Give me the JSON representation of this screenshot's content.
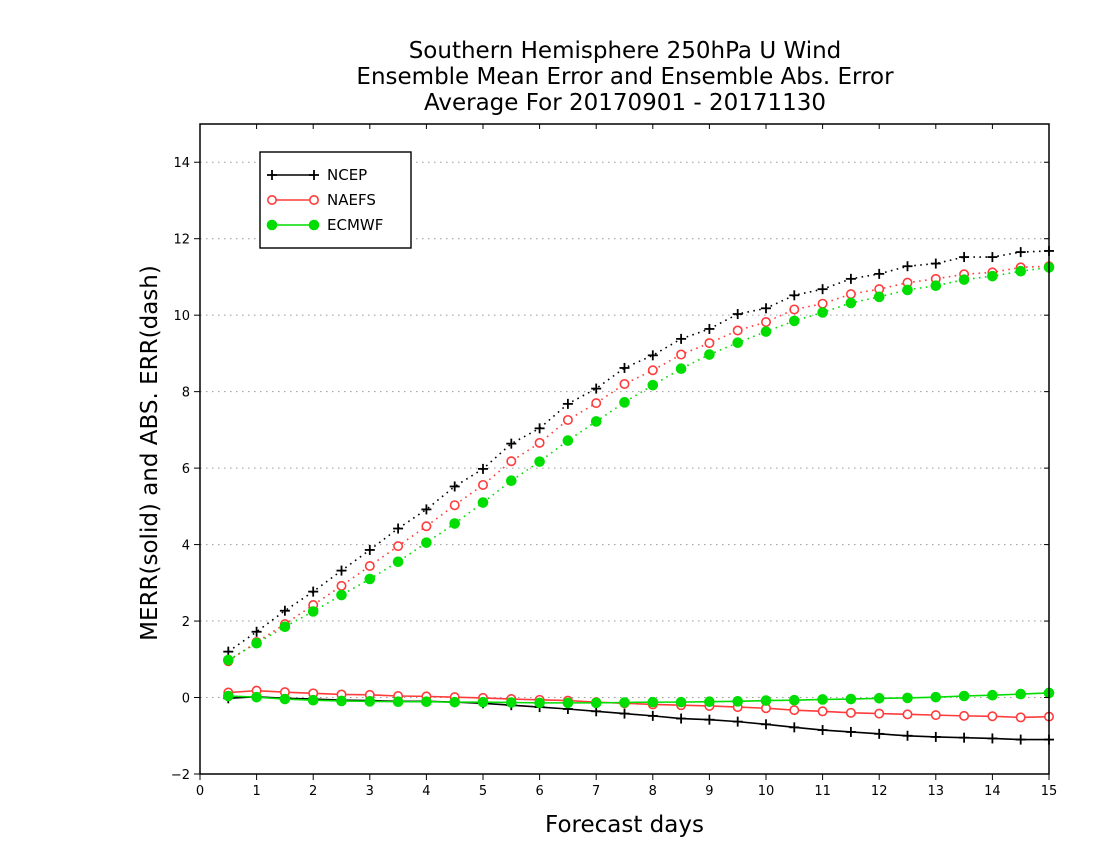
{
  "chart_data": {
    "type": "line",
    "title_lines": [
      "Southern Hemisphere 250hPa U Wind",
      "Ensemble Mean Error and Ensemble Abs. Error",
      "Average For 20170901 - 20171130"
    ],
    "xlabel": "Forecast days",
    "ylabel": "MERR(solid) and ABS. ERR(dash)",
    "xlim": [
      0,
      15
    ],
    "ylim": [
      -2,
      15
    ],
    "xticks": [
      0,
      1,
      2,
      3,
      4,
      5,
      6,
      7,
      8,
      9,
      10,
      11,
      12,
      13,
      14,
      15
    ],
    "yticks": [
      -2,
      0,
      2,
      4,
      6,
      8,
      10,
      12,
      14
    ],
    "grid": "horizontal dotted",
    "legend_position": "top-left",
    "x": [
      0.5,
      1,
      1.5,
      2,
      2.5,
      3,
      3.5,
      4,
      4.5,
      5,
      5.5,
      6,
      6.5,
      7,
      7.5,
      8,
      8.5,
      9,
      9.5,
      10,
      10.5,
      11,
      11.5,
      12,
      12.5,
      13,
      13.5,
      14,
      14.5,
      15
    ],
    "series": [
      {
        "name": "NCEP",
        "color": "#000000",
        "marker": "plus",
        "merr": [
          -0.02,
          0.02,
          -0.02,
          -0.04,
          -0.07,
          -0.08,
          -0.1,
          -0.1,
          -0.12,
          -0.15,
          -0.2,
          -0.25,
          -0.3,
          -0.36,
          -0.42,
          -0.48,
          -0.55,
          -0.58,
          -0.63,
          -0.7,
          -0.78,
          -0.85,
          -0.9,
          -0.95,
          -1.0,
          -1.03,
          -1.05,
          -1.07,
          -1.1,
          -1.1
        ],
        "abs_err": [
          1.2,
          1.72,
          2.27,
          2.77,
          3.32,
          3.86,
          4.42,
          4.92,
          5.52,
          5.98,
          6.64,
          7.04,
          7.68,
          8.08,
          8.62,
          8.95,
          9.38,
          9.64,
          10.03,
          10.18,
          10.52,
          10.68,
          10.95,
          11.08,
          11.28,
          11.35,
          11.52,
          11.52,
          11.65,
          11.68
        ]
      },
      {
        "name": "NAEFS",
        "color": "#ff3b3b",
        "marker": "open-circle",
        "merr": [
          0.13,
          0.18,
          0.14,
          0.11,
          0.08,
          0.07,
          0.04,
          0.03,
          0.01,
          -0.01,
          -0.04,
          -0.06,
          -0.08,
          -0.12,
          -0.15,
          -0.18,
          -0.2,
          -0.22,
          -0.25,
          -0.28,
          -0.33,
          -0.36,
          -0.4,
          -0.42,
          -0.44,
          -0.46,
          -0.48,
          -0.49,
          -0.52,
          -0.5
        ],
        "abs_err": [
          0.95,
          1.45,
          1.92,
          2.42,
          2.92,
          3.44,
          3.96,
          4.48,
          5.03,
          5.56,
          6.18,
          6.66,
          7.26,
          7.7,
          8.2,
          8.56,
          8.97,
          9.27,
          9.6,
          9.82,
          10.15,
          10.3,
          10.55,
          10.68,
          10.85,
          10.95,
          11.07,
          11.12,
          11.25,
          11.28
        ]
      },
      {
        "name": "ECMWF",
        "color": "#00dd00",
        "marker": "filled-circle",
        "merr": [
          0.04,
          0.01,
          -0.04,
          -0.07,
          -0.09,
          -0.1,
          -0.11,
          -0.11,
          -0.12,
          -0.12,
          -0.13,
          -0.14,
          -0.14,
          -0.14,
          -0.13,
          -0.12,
          -0.12,
          -0.11,
          -0.1,
          -0.08,
          -0.07,
          -0.05,
          -0.04,
          -0.02,
          -0.01,
          0.01,
          0.04,
          0.06,
          0.09,
          0.12
        ],
        "abs_err": [
          0.98,
          1.42,
          1.85,
          2.25,
          2.68,
          3.1,
          3.55,
          4.05,
          4.55,
          5.1,
          5.67,
          6.17,
          6.72,
          7.22,
          7.72,
          8.17,
          8.6,
          8.97,
          9.28,
          9.57,
          9.85,
          10.07,
          10.32,
          10.48,
          10.66,
          10.77,
          10.93,
          11.02,
          11.15,
          11.25
        ]
      }
    ]
  }
}
